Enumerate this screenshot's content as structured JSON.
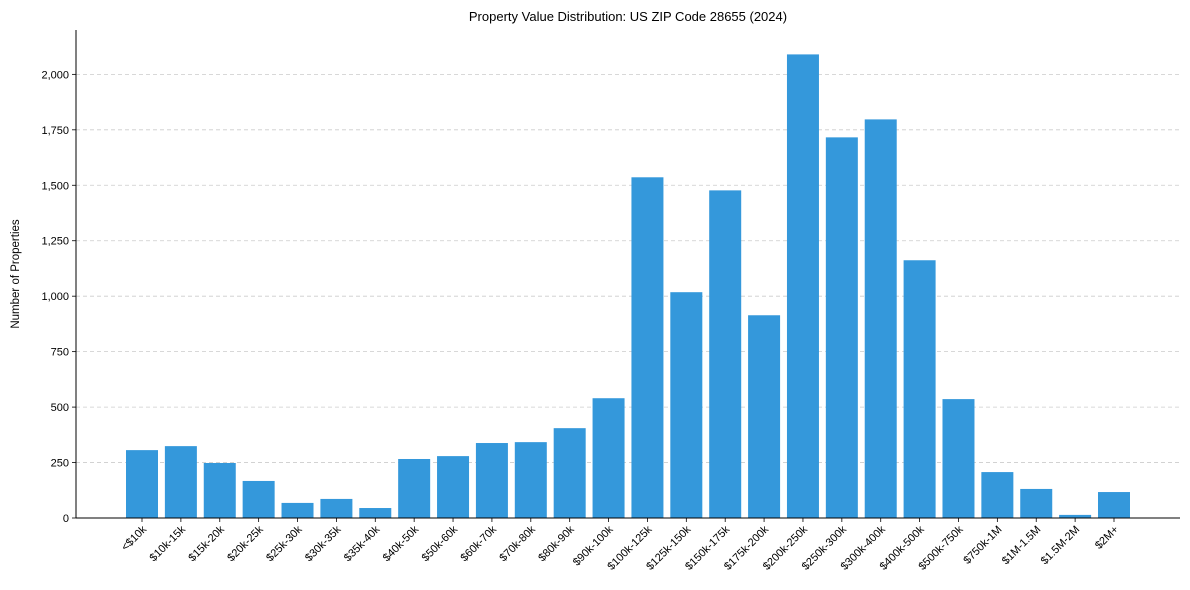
{
  "chart_data": {
    "type": "bar",
    "title": "Property Value Distribution: US ZIP Code 28655 (2024)",
    "xlabel": "",
    "ylabel": "Number of Properties",
    "ylim": [
      0,
      2200
    ],
    "yticks": [
      0,
      250,
      500,
      750,
      1000,
      1250,
      1500,
      1750,
      2000
    ],
    "ytick_labels": [
      "0",
      "250",
      "500",
      "750",
      "1,000",
      "1,250",
      "1,500",
      "1,750",
      "2,000"
    ],
    "grid": "y-dashed",
    "bar_color": "#3498db",
    "categories": [
      "<$10k",
      "$10k-15k",
      "$15k-20k",
      "$20k-25k",
      "$25k-30k",
      "$30k-35k",
      "$35k-40k",
      "$40k-50k",
      "$50k-60k",
      "$60k-70k",
      "$70k-80k",
      "$80k-90k",
      "$90k-100k",
      "$100k-125k",
      "$125k-150k",
      "$150k-175k",
      "$175k-200k",
      "$200k-250k",
      "$250k-300k",
      "$300k-400k",
      "$400k-500k",
      "$500k-750k",
      "$750k-1M",
      "$1M-1.5M",
      "$1.5M-2M",
      "$2M+"
    ],
    "values": [
      306,
      324,
      248,
      167,
      68,
      86,
      45,
      266,
      279,
      338,
      342,
      405,
      540,
      1536,
      1018,
      1477,
      914,
      2090,
      1716,
      1797,
      1162,
      536,
      207,
      131,
      14,
      117
    ]
  }
}
